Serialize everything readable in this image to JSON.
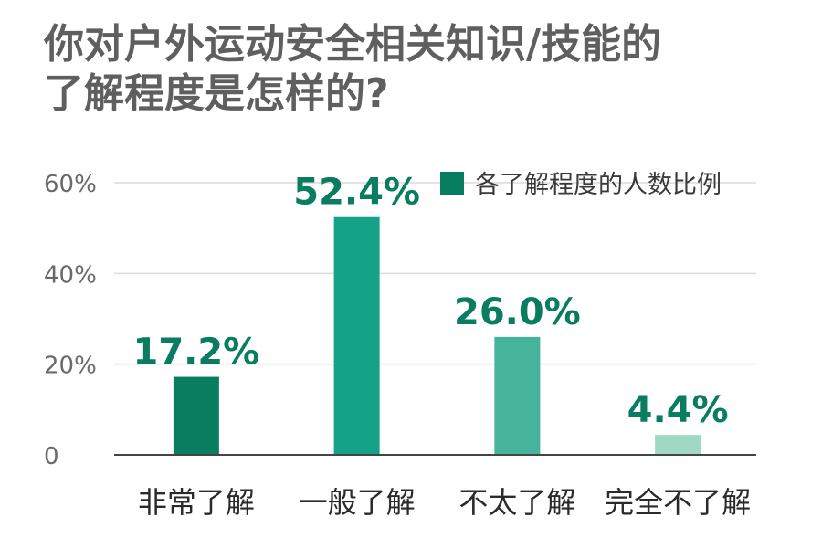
{
  "chart_data": {
    "type": "bar",
    "title_lines": [
      "你对户外运动安全相关知识/技能的",
      "了解程度是怎样的?"
    ],
    "categories": [
      "非常了解",
      "一般了解",
      "不太了解",
      "完全不了解"
    ],
    "values": [
      17.2,
      52.4,
      26.0,
      4.4
    ],
    "value_labels": [
      "17.2%",
      "52.4%",
      "26.0%",
      "4.4%"
    ],
    "bar_colors": [
      "#087d5f",
      "#14a288",
      "#45b49b",
      "#9fd8c3"
    ],
    "label_color": "#087d5f",
    "ylim": [
      0,
      60
    ],
    "yticks": [
      0,
      20,
      40,
      60
    ],
    "ytick_labels": [
      "0",
      "20%",
      "40%",
      "60%"
    ],
    "grid": true,
    "legend": {
      "label": "各了解程度的人数比例",
      "color": "#087d5f",
      "position": "top-right"
    }
  }
}
